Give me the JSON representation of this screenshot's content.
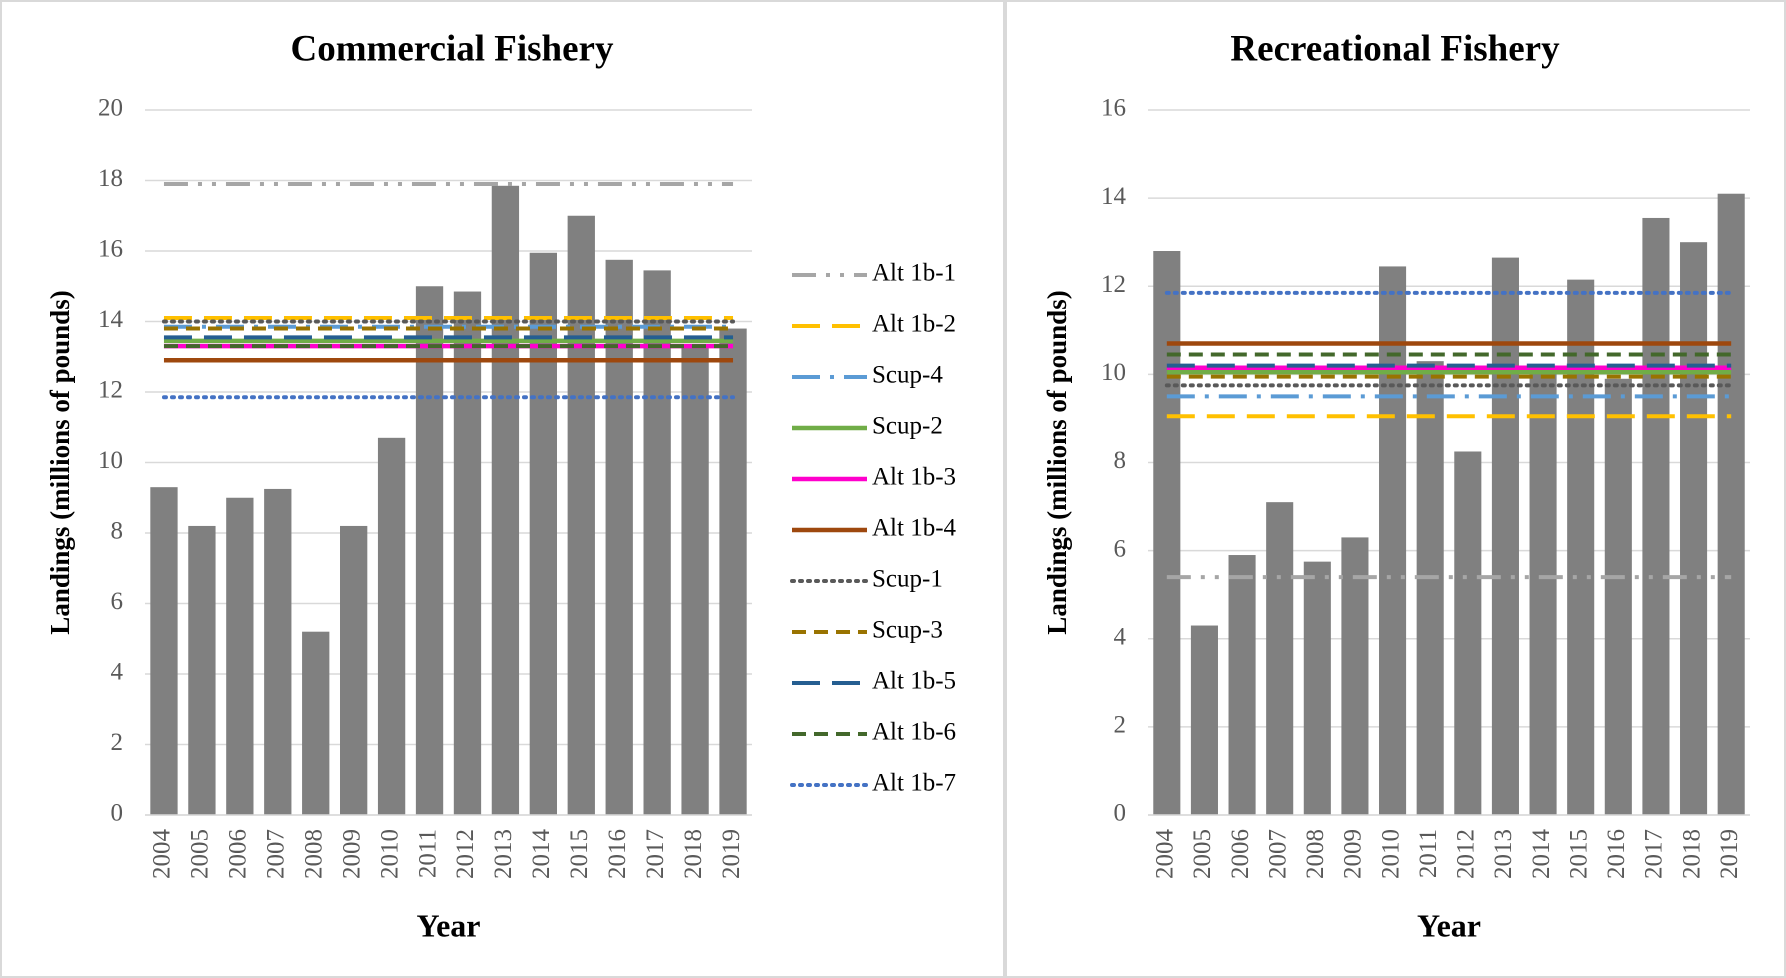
{
  "chart_data": [
    {
      "type": "bar",
      "title": "Commercial Fishery",
      "x_label": "Year",
      "y_label": "Landings (millions of pounds)",
      "categories": [
        "2004",
        "2005",
        "2006",
        "2007",
        "2008",
        "2009",
        "2010",
        "2011",
        "2012",
        "2013",
        "2014",
        "2015",
        "2016",
        "2017",
        "2018",
        "2019"
      ],
      "values": [
        9.3,
        8.2,
        9.0,
        9.25,
        5.2,
        8.2,
        10.7,
        15.0,
        14.85,
        17.85,
        15.95,
        17.0,
        15.75,
        15.45,
        13.3,
        13.8
      ],
      "color": "#808080",
      "ylim": [
        0,
        20
      ],
      "yticks": [
        0,
        2,
        4,
        6,
        8,
        10,
        12,
        14,
        16,
        18,
        20
      ],
      "grid": true,
      "legend": "right",
      "series": [
        {
          "name": "Alt 1b-1",
          "color": "#a6a6a6",
          "dash": "long-dash-dot-dot",
          "value": 17.9
        },
        {
          "name": "Alt 1b-2",
          "color": "#ffc000",
          "dash": "long-dash",
          "value": 14.1
        },
        {
          "name": "Scup-4",
          "color": "#5b9bd5",
          "dash": "long-dash-dot",
          "value": 13.85
        },
        {
          "name": "Scup-2",
          "color": "#70ad47",
          "dash": "solid",
          "value": 13.45
        },
        {
          "name": "Alt 1b-3",
          "color": "#ff00cc",
          "dash": "solid",
          "value": 13.3
        },
        {
          "name": "Alt 1b-4",
          "color": "#9e480e",
          "dash": "solid",
          "value": 12.9
        },
        {
          "name": "Scup-1",
          "color": "#595959",
          "dash": "dot",
          "value": 14.0
        },
        {
          "name": "Scup-3",
          "color": "#997300",
          "dash": "dash",
          "value": 13.8
        },
        {
          "name": "Alt 1b-5",
          "color": "#255e91",
          "dash": "long-dash",
          "value": 13.55
        },
        {
          "name": "Alt 1b-6",
          "color": "#43682b",
          "dash": "dash",
          "value": 13.3
        },
        {
          "name": "Alt 1b-7",
          "color": "#4472c4",
          "dash": "dot",
          "value": 11.85
        }
      ]
    },
    {
      "type": "bar",
      "title": "Recreational Fishery",
      "x_label": "Year",
      "y_label": "Landings (millions of pounds)",
      "categories": [
        "2004",
        "2005",
        "2006",
        "2007",
        "2008",
        "2009",
        "2010",
        "2011",
        "2012",
        "2013",
        "2014",
        "2015",
        "2016",
        "2017",
        "2018",
        "2019"
      ],
      "values": [
        12.8,
        4.3,
        5.9,
        7.1,
        5.75,
        6.3,
        12.45,
        10.3,
        8.25,
        12.65,
        10.1,
        12.15,
        9.9,
        13.55,
        13.0,
        14.1
      ],
      "color": "#808080",
      "ylim": [
        0,
        16
      ],
      "yticks": [
        0,
        2,
        4,
        6,
        8,
        10,
        12,
        14,
        16
      ],
      "grid": true,
      "series": [
        {
          "color": "#a6a6a6",
          "dash": "long-dash-dot-dot",
          "value": 5.4
        },
        {
          "color": "#ffc000",
          "dash": "long-dash",
          "value": 9.05
        },
        {
          "color": "#5b9bd5",
          "dash": "long-dash-dot",
          "value": 9.5
        },
        {
          "color": "#70ad47",
          "dash": "solid",
          "value": 10.05
        },
        {
          "color": "#ff00cc",
          "dash": "solid",
          "value": 10.15
        },
        {
          "color": "#9e480e",
          "dash": "solid",
          "value": 10.7
        },
        {
          "color": "#595959",
          "dash": "dot",
          "value": 9.75
        },
        {
          "color": "#997300",
          "dash": "dash",
          "value": 9.95
        },
        {
          "color": "#255e91",
          "dash": "long-dash",
          "value": 10.2
        },
        {
          "color": "#43682b",
          "dash": "dash",
          "value": 10.45
        },
        {
          "color": "#4472c4",
          "dash": "dot",
          "value": 11.85
        }
      ]
    }
  ]
}
